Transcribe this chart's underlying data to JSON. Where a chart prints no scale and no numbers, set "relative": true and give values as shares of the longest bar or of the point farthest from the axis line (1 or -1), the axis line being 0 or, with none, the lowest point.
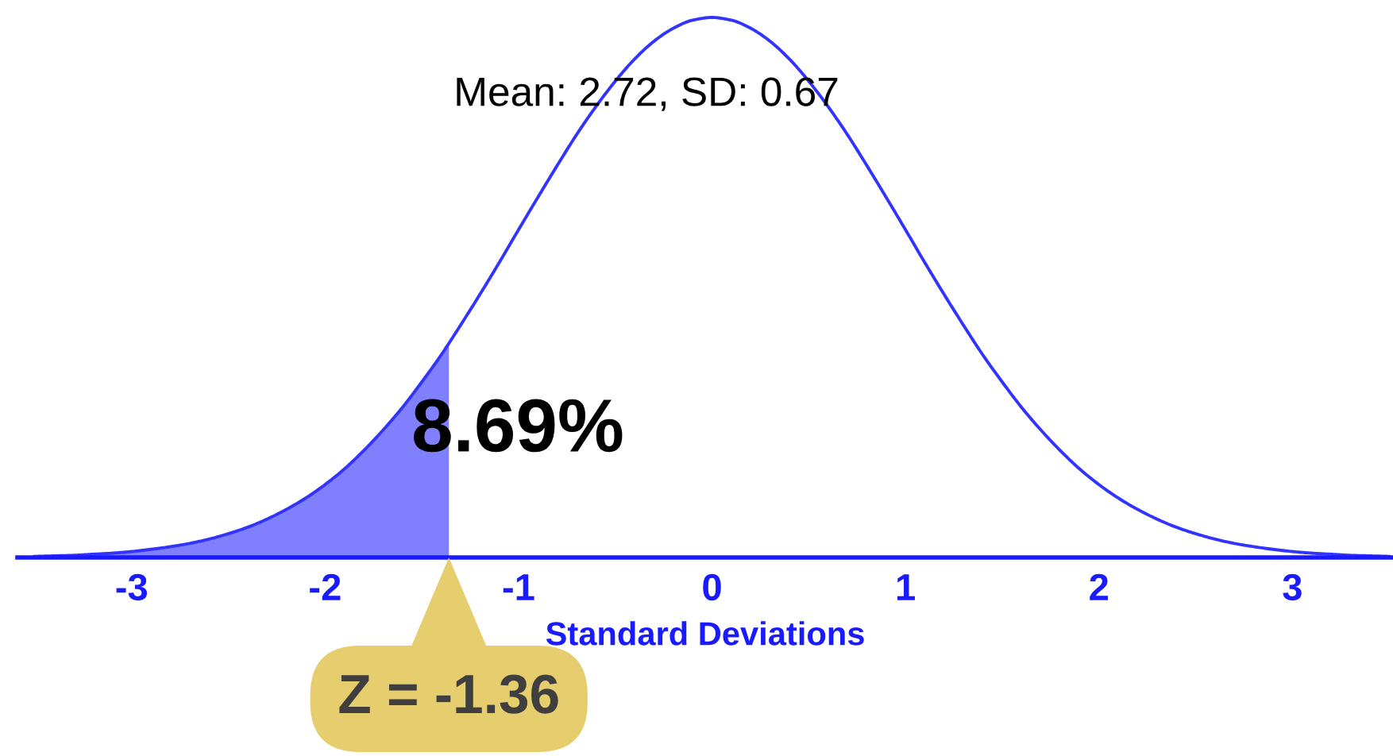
{
  "chart_data": {
    "type": "line",
    "relative": true,
    "xlabel": "Standard Deviations",
    "xlim": [
      -3.59,
      3.52
    ],
    "xticks": [
      -3,
      -2,
      -1,
      0,
      1,
      2,
      3
    ],
    "annotations": [
      "Mean: 2.72, SD: 0.67",
      "8.69%",
      {
        "text": "Z = -1.36",
        "x": -1.36,
        "y": 0
      }
    ],
    "series": [
      {
        "type": "area",
        "color": "#8080ff",
        "x": [
          -3.5,
          -3.4,
          -3.3,
          -3.2,
          -3.1,
          -3,
          -2.9,
          -2.8,
          -2.7,
          -2.6,
          -2.5,
          -2.4,
          -2.3,
          -2.2,
          -2.1,
          -2,
          -1.9,
          -1.8,
          -1.7,
          -1.6,
          -1.5,
          -1.4,
          -1.36
        ],
        "values": [
          0.002,
          0.003,
          0.004,
          0.006,
          0.008,
          0.011,
          0.015,
          0.02,
          0.026,
          0.034,
          0.044,
          0.056,
          0.071,
          0.089,
          0.11,
          0.135,
          0.164,
          0.198,
          0.236,
          0.278,
          0.325,
          0.375,
          0.397
        ]
      },
      {
        "color": "#3333ff",
        "x": [
          -3.5,
          -3.4,
          -3.3,
          -3.2,
          -3.1,
          -3,
          -2.9,
          -2.8,
          -2.7,
          -2.6,
          -2.5,
          -2.4,
          -2.3,
          -2.2,
          -2.1,
          -2,
          -1.9,
          -1.8,
          -1.7,
          -1.6,
          -1.5,
          -1.4,
          -1.3,
          -1.2,
          -1.1,
          -1,
          -0.9,
          -0.8,
          -0.7,
          -0.6,
          -0.5,
          -0.4,
          -0.3,
          -0.2,
          -0.1,
          0,
          0.1,
          0.2,
          0.3,
          0.4,
          0.5,
          0.6,
          0.7,
          0.8,
          0.9,
          1,
          1.1,
          1.2,
          1.3,
          1.4,
          1.5,
          1.6,
          1.7,
          1.8,
          1.9,
          2,
          2.1,
          2.2,
          2.3,
          2.4,
          2.5,
          2.6,
          2.7,
          2.8,
          2.9,
          3,
          3.1,
          3.2,
          3.3,
          3.4,
          3.5
        ],
        "values": [
          0.002,
          0.003,
          0.004,
          0.006,
          0.008,
          0.011,
          0.015,
          0.02,
          0.026,
          0.034,
          0.044,
          0.056,
          0.071,
          0.089,
          0.11,
          0.135,
          0.164,
          0.198,
          0.236,
          0.278,
          0.325,
          0.375,
          0.43,
          0.487,
          0.546,
          0.607,
          0.667,
          0.726,
          0.783,
          0.835,
          0.882,
          0.923,
          0.956,
          0.98,
          0.995,
          1.0,
          0.995,
          0.98,
          0.956,
          0.923,
          0.882,
          0.835,
          0.783,
          0.726,
          0.667,
          0.607,
          0.546,
          0.487,
          0.43,
          0.375,
          0.325,
          0.278,
          0.236,
          0.198,
          0.164,
          0.135,
          0.11,
          0.089,
          0.071,
          0.056,
          0.044,
          0.034,
          0.026,
          0.02,
          0.015,
          0.011,
          0.008,
          0.006,
          0.004,
          0.003,
          0.002
        ]
      }
    ]
  }
}
